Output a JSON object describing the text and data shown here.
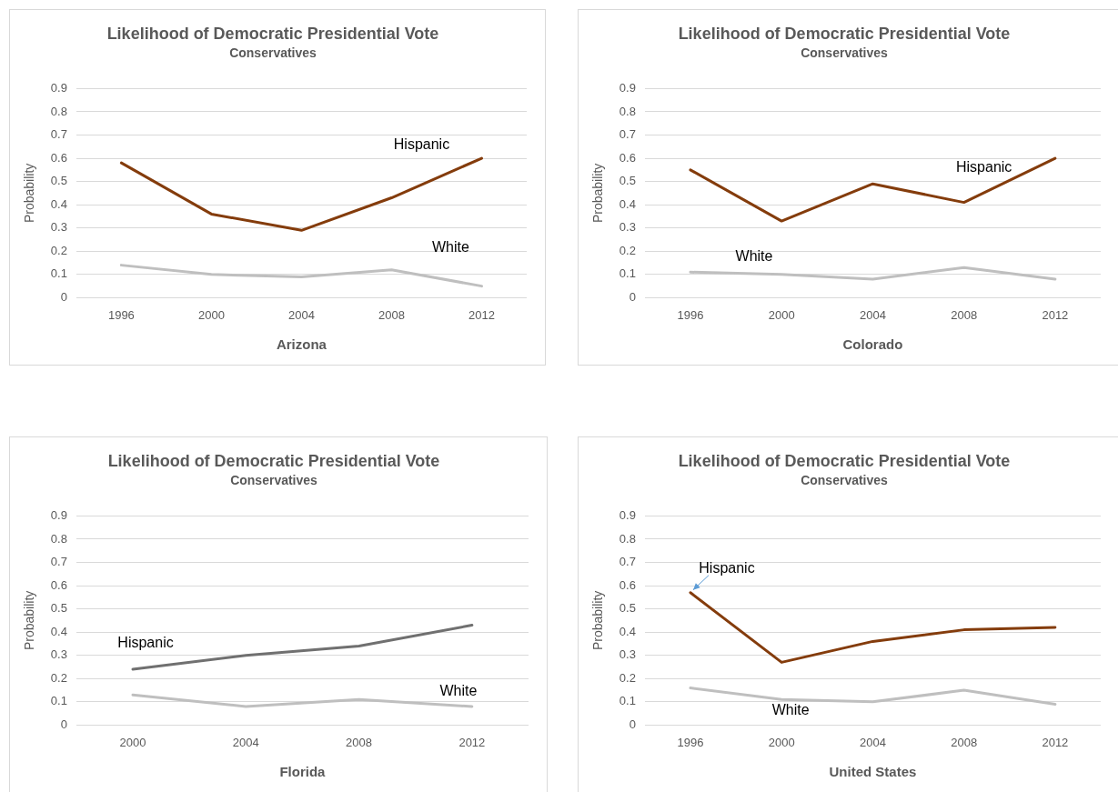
{
  "chart_data": [
    {
      "type": "line",
      "title": "Likelihood of Democratic Presidential Vote",
      "subtitle": "Conservatives",
      "xlabel": "Arizona",
      "ylabel": "Probability",
      "categories": [
        "1996",
        "2000",
        "2004",
        "2008",
        "2012"
      ],
      "ylim": [
        0,
        0.9
      ],
      "yticks": [
        0,
        0.1,
        0.2,
        0.3,
        0.4,
        0.5,
        0.6,
        0.7,
        0.8,
        0.9
      ],
      "grid": "y",
      "legend": false,
      "marker": "none",
      "line_style": "solid",
      "series": [
        {
          "name": "Hispanic",
          "color": "#843c0c",
          "values": [
            0.58,
            0.36,
            0.29,
            0.43,
            0.6
          ]
        },
        {
          "name": "White",
          "color": "#bfbfbf",
          "values": [
            0.14,
            0.1,
            0.09,
            0.12,
            0.05
          ]
        }
      ]
    },
    {
      "type": "line",
      "title": "Likelihood of Democratic Presidential Vote",
      "subtitle": "Conservatives",
      "xlabel": "Colorado",
      "ylabel": "Probability",
      "categories": [
        "1996",
        "2000",
        "2004",
        "2008",
        "2012"
      ],
      "ylim": [
        0,
        0.9
      ],
      "yticks": [
        0,
        0.1,
        0.2,
        0.3,
        0.4,
        0.5,
        0.6,
        0.7,
        0.8,
        0.9
      ],
      "grid": "y",
      "legend": false,
      "marker": "none",
      "line_style": "solid",
      "series": [
        {
          "name": "Hispanic",
          "color": "#843c0c",
          "values": [
            0.55,
            0.33,
            0.49,
            0.41,
            0.6
          ]
        },
        {
          "name": "White",
          "color": "#bfbfbf",
          "values": [
            0.11,
            0.1,
            0.08,
            0.13,
            0.08
          ]
        }
      ]
    },
    {
      "type": "line",
      "title": "Likelihood of Democratic Presidential Vote",
      "subtitle": "Conservatives",
      "xlabel": "Florida",
      "ylabel": "Probability",
      "categories": [
        "2000",
        "2004",
        "2008",
        "2012"
      ],
      "ylim": [
        0,
        0.9
      ],
      "yticks": [
        0,
        0.1,
        0.2,
        0.3,
        0.4,
        0.5,
        0.6,
        0.7,
        0.8,
        0.9
      ],
      "grid": "y",
      "legend": false,
      "marker": "none",
      "line_style": "solid",
      "series": [
        {
          "name": "Hispanic",
          "color": "#707070",
          "values": [
            0.24,
            0.3,
            0.34,
            0.43
          ]
        },
        {
          "name": "White",
          "color": "#bfbfbf",
          "values": [
            0.13,
            0.08,
            0.11,
            0.08
          ]
        }
      ]
    },
    {
      "type": "line",
      "title": "Likelihood of Democratic Presidential Vote",
      "subtitle": "Conservatives",
      "xlabel": "United States",
      "ylabel": "Probability",
      "categories": [
        "1996",
        "2000",
        "2004",
        "2008",
        "2012"
      ],
      "ylim": [
        0,
        0.9
      ],
      "yticks": [
        0,
        0.1,
        0.2,
        0.3,
        0.4,
        0.5,
        0.6,
        0.7,
        0.8,
        0.9
      ],
      "grid": "y",
      "legend": false,
      "marker": "none",
      "line_style": "solid",
      "series": [
        {
          "name": "Hispanic",
          "color": "#843c0c",
          "values": [
            0.57,
            0.27,
            0.36,
            0.41,
            0.42
          ]
        },
        {
          "name": "White",
          "color": "#bfbfbf",
          "values": [
            0.16,
            0.11,
            0.1,
            0.15,
            0.09
          ]
        }
      ]
    }
  ]
}
